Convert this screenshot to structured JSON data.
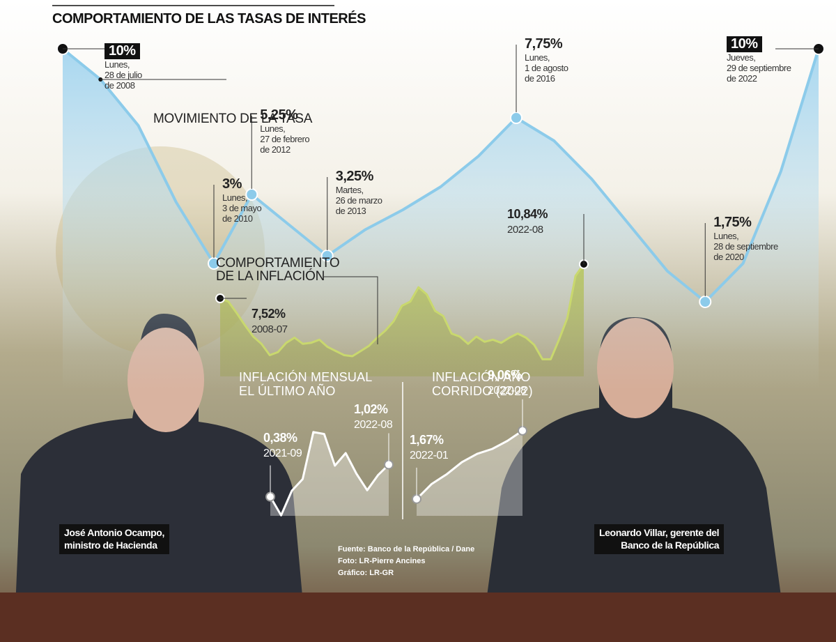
{
  "chart_data": [
    {
      "type": "area",
      "title": "COMPORTAMIENTO DE LAS TASAS DE INTERÉS",
      "label": "MOVIMIENTO DE LA TASA",
      "color": "#8ccbea",
      "values": [
        10,
        9,
        7.5,
        5,
        3,
        5.25,
        4.25,
        3.25,
        4.1,
        4.75,
        5.5,
        6.5,
        7.75,
        7,
        5.75,
        4.25,
        2.75,
        1.75,
        3,
        6,
        10
      ],
      "value_labels": [
        "10%",
        null,
        null,
        null,
        "3%",
        "5,25%",
        null,
        "3,25%",
        null,
        null,
        null,
        null,
        "7,75%",
        null,
        null,
        null,
        null,
        "1,75%",
        null,
        null,
        "10%"
      ],
      "categories": [
        "Lunes,\n28 de julio\nde 2008",
        null,
        null,
        null,
        "Lunes,\n3 de mayo\nde 2010",
        "Lunes,\n27 de febrero\nde 2012",
        null,
        "Martes,\n26 de marzo\nde 2013",
        null,
        null,
        null,
        null,
        "Lunes,\n1 de agosto\nde 2016",
        null,
        null,
        null,
        null,
        "Lunes,\n28 de septiembre\nde 2020",
        null,
        null,
        "Jueves,\n29 de septiembre\nde 2022"
      ]
    },
    {
      "type": "line",
      "label": "COMPORTAMIENTO\nDE LA INFLACIÓN",
      "color": "#c9d86e",
      "values": [
        7.52,
        7.2,
        6.1,
        4.9,
        3.8,
        3.1,
        2.0,
        2.3,
        3.2,
        3.7,
        3.1,
        3.2,
        3.5,
        2.8,
        2.4,
        2.0,
        1.9,
        2.4,
        2.9,
        3.7,
        4.4,
        5.3,
        6.8,
        7.2,
        8.6,
        7.9,
        6.3,
        5.8,
        4.1,
        3.8,
        3.1,
        3.8,
        3.3,
        3.5,
        3.2,
        3.7,
        4.1,
        3.7,
        3.0,
        1.6,
        1.6,
        3.5,
        5.6,
        9.7,
        10.84
      ],
      "value_labels": [
        "7,52%",
        null,
        null,
        null,
        null,
        null,
        null,
        null,
        null,
        null,
        null,
        null,
        null,
        null,
        null,
        null,
        null,
        null,
        null,
        null,
        null,
        null,
        null,
        null,
        null,
        null,
        null,
        null,
        null,
        null,
        null,
        null,
        null,
        null,
        null,
        null,
        null,
        null,
        null,
        null,
        null,
        null,
        null,
        null,
        "10,84%"
      ],
      "categories": [
        "2008-07",
        null,
        null,
        null,
        null,
        null,
        null,
        null,
        null,
        null,
        null,
        null,
        null,
        null,
        null,
        null,
        null,
        null,
        null,
        null,
        null,
        null,
        null,
        null,
        null,
        null,
        null,
        null,
        null,
        null,
        null,
        null,
        null,
        null,
        null,
        null,
        null,
        null,
        null,
        null,
        null,
        null,
        null,
        null,
        "2022-08"
      ]
    },
    {
      "type": "area",
      "title": "INFLACIÓN MENSUAL\nEL ÚLTIMO AÑO",
      "color": "#ffffff",
      "values": [
        0.38,
        0.01,
        0.5,
        0.73,
        1.67,
        1.63,
        1.0,
        1.25,
        0.84,
        0.51,
        0.81,
        1.02
      ],
      "value_labels": [
        "0,38%",
        null,
        null,
        null,
        null,
        null,
        null,
        null,
        null,
        null,
        null,
        "1,02%"
      ],
      "categories": [
        "2021-09",
        null,
        null,
        null,
        null,
        null,
        null,
        null,
        null,
        null,
        null,
        "2022-08"
      ]
    },
    {
      "type": "area",
      "title": "INFLACIÓN AÑO\nCORRIDO (2022)",
      "color": "#ffffff",
      "values": [
        1.67,
        3.3,
        4.36,
        5.66,
        6.55,
        7.09,
        7.96,
        9.06
      ],
      "value_labels": [
        "1,67%",
        null,
        null,
        null,
        null,
        null,
        null,
        "9,06%"
      ],
      "categories": [
        "2022-01",
        null,
        null,
        null,
        null,
        null,
        null,
        "2022-08"
      ]
    }
  ],
  "captions": [
    "José Antonio Ocampo,\nministro de Hacienda",
    "Leonardo Villar, gerente del\nBanco de la República"
  ],
  "credits": [
    "Fuente: Banco de la República / Dane",
    "Foto: LR-Pierre Ancines",
    "Gráfico: LR-GR"
  ]
}
